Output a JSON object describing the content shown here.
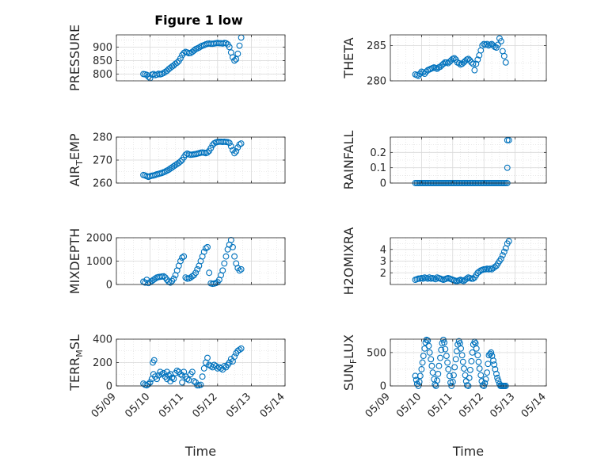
{
  "figure_title": "Figure 1 low",
  "colors": {
    "marker": "#0072bd",
    "grid": "#d9d9d9",
    "axis": "#262626"
  },
  "chart_data": [
    {
      "type": "scatter",
      "id": "pressure",
      "title": "Figure 1 low",
      "ylabel": {
        "main": "PRESSURE"
      },
      "xlabel": "",
      "xlim": [
        0,
        5
      ],
      "ylim": [
        775,
        945
      ],
      "yticks": [
        800,
        850,
        900
      ],
      "show_xticklabels": false,
      "x": [
        0.8,
        0.85,
        0.9,
        0.95,
        1.0,
        1.05,
        1.1,
        1.15,
        1.2,
        1.25,
        1.3,
        1.35,
        1.4,
        1.45,
        1.5,
        1.55,
        1.6,
        1.65,
        1.7,
        1.75,
        1.8,
        1.85,
        1.9,
        1.95,
        2.0,
        2.05,
        2.1,
        2.15,
        2.2,
        2.25,
        2.3,
        2.35,
        2.4,
        2.45,
        2.5,
        2.55,
        2.6,
        2.65,
        2.7,
        2.75,
        2.8,
        2.85,
        2.9,
        2.95,
        3.0,
        3.05,
        3.1,
        3.15,
        3.2,
        3.25,
        3.3,
        3.35,
        3.4,
        3.45,
        3.5,
        3.55,
        3.6,
        3.65,
        3.7
      ],
      "y": [
        800,
        799,
        797,
        790,
        785,
        798,
        800,
        796,
        798,
        801,
        799,
        801,
        804,
        808,
        812,
        818,
        823,
        828,
        832,
        838,
        842,
        848,
        858,
        870,
        878,
        882,
        880,
        877,
        878,
        882,
        887,
        892,
        895,
        898,
        902,
        905,
        907,
        910,
        912,
        913,
        912,
        912,
        913,
        914,
        915,
        914,
        914,
        913,
        915,
        914,
        910,
        900,
        880,
        862,
        850,
        855,
        875,
        905,
        935
      ]
    },
    {
      "type": "scatter",
      "id": "theta",
      "ylabel": {
        "main": "THETA"
      },
      "xlabel": "",
      "xlim": [
        0,
        5
      ],
      "ylim": [
        280,
        286.5
      ],
      "yticks": [
        280,
        285
      ],
      "show_xticklabels": false,
      "x": [
        0.8,
        0.85,
        0.9,
        0.95,
        1.0,
        1.05,
        1.1,
        1.15,
        1.2,
        1.25,
        1.3,
        1.35,
        1.4,
        1.45,
        1.5,
        1.55,
        1.6,
        1.65,
        1.7,
        1.75,
        1.8,
        1.85,
        1.9,
        1.95,
        2.0,
        2.05,
        2.1,
        2.15,
        2.2,
        2.25,
        2.3,
        2.35,
        2.4,
        2.45,
        2.5,
        2.55,
        2.6,
        2.65,
        2.7,
        2.75,
        2.8,
        2.85,
        2.9,
        2.95,
        3.0,
        3.05,
        3.1,
        3.15,
        3.2,
        3.25,
        3.3,
        3.35,
        3.4,
        3.45,
        3.5,
        3.55,
        3.6,
        3.65,
        3.7
      ],
      "y": [
        280.9,
        280.8,
        280.7,
        281.0,
        281.3,
        281.2,
        281.0,
        281.3,
        281.5,
        281.6,
        281.7,
        281.8,
        281.9,
        281.8,
        281.7,
        281.9,
        282.0,
        282.2,
        282.4,
        282.6,
        282.6,
        282.5,
        282.7,
        282.9,
        283.1,
        283.2,
        283.0,
        282.6,
        282.5,
        282.3,
        282.4,
        282.6,
        282.8,
        283.0,
        283.1,
        282.9,
        282.6,
        282.4,
        281.5,
        282.4,
        283.0,
        283.6,
        284.3,
        285.0,
        285.2,
        285.1,
        285.2,
        285.0,
        285.1,
        285.2,
        285.0,
        284.8,
        284.7,
        285.1,
        286.0,
        285.6,
        284.2,
        283.5,
        282.6
      ]
    },
    {
      "type": "scatter",
      "id": "air_temp",
      "ylabel": {
        "main": "AIR",
        "sub": "T",
        "rest": "EMP"
      },
      "xlabel": "",
      "xlim": [
        0,
        5
      ],
      "ylim": [
        260,
        280
      ],
      "yticks": [
        260,
        270,
        280
      ],
      "show_xticklabels": false,
      "x": [
        0.8,
        0.85,
        0.9,
        0.95,
        1.0,
        1.05,
        1.1,
        1.15,
        1.2,
        1.25,
        1.3,
        1.35,
        1.4,
        1.45,
        1.5,
        1.55,
        1.6,
        1.65,
        1.7,
        1.75,
        1.8,
        1.85,
        1.9,
        1.95,
        2.0,
        2.05,
        2.1,
        2.15,
        2.2,
        2.25,
        2.3,
        2.35,
        2.4,
        2.45,
        2.5,
        2.55,
        2.6,
        2.65,
        2.7,
        2.75,
        2.8,
        2.85,
        2.9,
        2.95,
        3.0,
        3.05,
        3.1,
        3.15,
        3.2,
        3.25,
        3.3,
        3.35,
        3.4,
        3.45,
        3.5,
        3.55,
        3.6,
        3.65,
        3.7
      ],
      "y": [
        263.5,
        263.3,
        263.0,
        262.7,
        263.0,
        263.2,
        263.3,
        263.5,
        263.8,
        264.0,
        264.2,
        264.4,
        264.7,
        265.0,
        265.4,
        265.8,
        266.3,
        266.8,
        267.3,
        267.8,
        268.3,
        268.8,
        269.4,
        270.1,
        271.2,
        272.3,
        272.8,
        272.5,
        272.3,
        272.4,
        272.5,
        272.6,
        272.8,
        273.0,
        273.2,
        273.3,
        273.2,
        273.0,
        273.3,
        274.0,
        275.2,
        276.5,
        277.3,
        277.7,
        277.9,
        278.0,
        278.0,
        277.9,
        278.0,
        277.9,
        277.8,
        277.5,
        276.0,
        274.3,
        273.0,
        273.8,
        275.5,
        276.8,
        277.2
      ]
    },
    {
      "type": "scatter",
      "id": "rainfall",
      "ylabel": {
        "main": "RAINFALL"
      },
      "xlabel": "",
      "xlim": [
        0,
        5
      ],
      "ylim": [
        0,
        0.3
      ],
      "yticks": [
        0,
        0.1,
        0.2
      ],
      "show_xticklabels": false,
      "x": [
        0.8,
        0.85,
        0.9,
        0.95,
        1.0,
        1.05,
        1.1,
        1.15,
        1.2,
        1.25,
        1.3,
        1.35,
        1.4,
        1.45,
        1.5,
        1.55,
        1.6,
        1.65,
        1.7,
        1.75,
        1.8,
        1.85,
        1.9,
        1.95,
        2.0,
        2.05,
        2.1,
        2.15,
        2.2,
        2.25,
        2.3,
        2.35,
        2.4,
        2.45,
        2.5,
        2.55,
        2.6,
        2.65,
        2.7,
        2.75,
        2.8,
        2.85,
        2.9,
        2.95,
        3.0,
        3.05,
        3.1,
        3.15,
        3.2,
        3.25,
        3.3,
        3.35,
        3.4,
        3.45,
        3.5,
        3.55,
        3.6,
        3.65,
        3.7,
        3.75,
        3.75,
        3.8,
        3.75
      ],
      "y": [
        0,
        0,
        0,
        0,
        0,
        0,
        0,
        0,
        0,
        0,
        0,
        0,
        0,
        0,
        0,
        0,
        0,
        0,
        0,
        0,
        0,
        0,
        0,
        0,
        0,
        0,
        0,
        0,
        0,
        0,
        0,
        0,
        0,
        0,
        0,
        0,
        0,
        0,
        0,
        0,
        0,
        0,
        0,
        0,
        0,
        0,
        0,
        0,
        0,
        0,
        0,
        0,
        0,
        0,
        0,
        0,
        0,
        0,
        0,
        0,
        0.1,
        0.28,
        0.28
      ]
    },
    {
      "type": "scatter",
      "id": "mixdepth",
      "ylabel": {
        "main": "MIXDEPTH"
      },
      "xlabel": "",
      "xlim": [
        0,
        5
      ],
      "ylim": [
        0,
        2000
      ],
      "yticks": [
        0,
        1000,
        2000
      ],
      "show_xticklabels": false,
      "x": [
        0.8,
        0.85,
        0.9,
        0.95,
        1.0,
        1.05,
        1.1,
        1.15,
        1.2,
        1.25,
        1.3,
        1.35,
        1.4,
        1.45,
        1.5,
        1.55,
        1.6,
        1.65,
        1.7,
        1.75,
        1.8,
        1.85,
        1.9,
        1.95,
        2.0,
        2.05,
        2.1,
        2.15,
        2.2,
        2.25,
        2.3,
        2.35,
        2.4,
        2.45,
        2.5,
        2.55,
        2.6,
        2.65,
        2.7,
        2.75,
        2.8,
        2.85,
        2.9,
        2.95,
        3.0,
        3.05,
        3.1,
        3.15,
        3.2,
        3.25,
        3.3,
        3.35,
        3.4,
        3.45,
        3.5,
        3.55,
        3.6,
        3.65,
        3.7
      ],
      "y": [
        120,
        80,
        200,
        60,
        100,
        150,
        200,
        250,
        300,
        320,
        330,
        340,
        350,
        300,
        200,
        120,
        80,
        150,
        250,
        400,
        600,
        800,
        1000,
        1150,
        1200,
        300,
        250,
        260,
        300,
        350,
        400,
        500,
        650,
        800,
        1000,
        1200,
        1400,
        1550,
        1600,
        500,
        50,
        30,
        40,
        60,
        100,
        200,
        400,
        600,
        900,
        1200,
        1500,
        1700,
        1900,
        1600,
        1200,
        900,
        700,
        600,
        650
      ]
    },
    {
      "type": "scatter",
      "id": "h2omixra",
      "ylabel": {
        "main": "H2OMIXRA"
      },
      "xlabel": "",
      "xlim": [
        0,
        5
      ],
      "ylim": [
        1,
        5
      ],
      "yticks": [
        2,
        3,
        4
      ],
      "show_xticklabels": false,
      "x": [
        0.8,
        0.85,
        0.9,
        0.95,
        1.0,
        1.05,
        1.1,
        1.15,
        1.2,
        1.25,
        1.3,
        1.35,
        1.4,
        1.45,
        1.5,
        1.55,
        1.6,
        1.65,
        1.7,
        1.75,
        1.8,
        1.85,
        1.9,
        1.95,
        2.0,
        2.05,
        2.1,
        2.15,
        2.2,
        2.25,
        2.3,
        2.35,
        2.4,
        2.45,
        2.5,
        2.55,
        2.6,
        2.65,
        2.7,
        2.75,
        2.8,
        2.85,
        2.9,
        2.95,
        3.0,
        3.05,
        3.1,
        3.15,
        3.2,
        3.25,
        3.3,
        3.35,
        3.4,
        3.45,
        3.5,
        3.55,
        3.6,
        3.65,
        3.7,
        3.75,
        3.8
      ],
      "y": [
        1.4,
        1.45,
        1.5,
        1.5,
        1.55,
        1.5,
        1.6,
        1.55,
        1.5,
        1.6,
        1.5,
        1.55,
        1.5,
        1.45,
        1.6,
        1.55,
        1.5,
        1.45,
        1.4,
        1.45,
        1.5,
        1.55,
        1.5,
        1.45,
        1.4,
        1.35,
        1.3,
        1.3,
        1.35,
        1.4,
        1.35,
        1.3,
        1.4,
        1.5,
        1.6,
        1.55,
        1.5,
        1.5,
        1.6,
        1.8,
        2.0,
        2.1,
        2.2,
        2.25,
        2.3,
        2.3,
        2.35,
        2.3,
        2.35,
        2.3,
        2.4,
        2.5,
        2.6,
        2.8,
        3.0,
        3.2,
        3.5,
        3.8,
        4.1,
        4.5,
        4.7
      ]
    },
    {
      "type": "scatter",
      "id": "terr_msl",
      "ylabel": {
        "main": "TERR",
        "sub": "M",
        "rest": "SL"
      },
      "xlabel": "Time",
      "xlim": [
        0,
        5
      ],
      "ylim": [
        0,
        400
      ],
      "yticks": [
        0,
        200,
        400
      ],
      "xticks": [
        0,
        1,
        2,
        3,
        4,
        5
      ],
      "xticklabels": [
        "05/09",
        "05/10",
        "05/11",
        "05/12",
        "05/13",
        "05/14"
      ],
      "show_xticklabels": true,
      "x": [
        0.8,
        0.85,
        0.9,
        0.95,
        1.0,
        1.05,
        1.1,
        1.15,
        1.2,
        1.25,
        1.3,
        1.35,
        1.4,
        1.45,
        1.5,
        1.55,
        1.6,
        1.65,
        1.7,
        1.75,
        1.8,
        1.85,
        1.9,
        1.95,
        2.0,
        2.05,
        2.1,
        2.15,
        2.2,
        2.25,
        2.3,
        2.35,
        2.4,
        2.45,
        2.5,
        2.55,
        2.6,
        2.65,
        2.7,
        2.75,
        2.8,
        2.85,
        2.9,
        2.95,
        3.0,
        3.05,
        3.1,
        3.15,
        3.2,
        3.25,
        3.3,
        3.35,
        3.4,
        3.45,
        3.5,
        3.55,
        3.6,
        3.65,
        3.7,
        1.08,
        1.12,
        1.5,
        1.6,
        1.95
      ],
      "y": [
        20,
        10,
        5,
        15,
        30,
        60,
        100,
        80,
        60,
        90,
        120,
        100,
        110,
        80,
        120,
        90,
        100,
        70,
        60,
        110,
        130,
        120,
        100,
        90,
        120,
        80,
        60,
        50,
        100,
        120,
        40,
        30,
        5,
        5,
        10,
        80,
        150,
        200,
        240,
        180,
        170,
        160,
        180,
        170,
        150,
        160,
        150,
        140,
        170,
        160,
        180,
        200,
        230,
        210,
        250,
        280,
        300,
        310,
        320,
        200,
        220,
        60,
        40,
        30
      ]
    },
    {
      "type": "scatter",
      "id": "sun_flux",
      "ylabel": {
        "main": "SUN",
        "sub": "F",
        "rest": "LUX"
      },
      "xlabel": "Time",
      "xlim": [
        0,
        5
      ],
      "ylim": [
        0,
        700
      ],
      "yticks": [
        0,
        500
      ],
      "xticks": [
        0,
        1,
        2,
        3,
        4,
        5
      ],
      "xticklabels": [
        "05/09",
        "05/10",
        "05/11",
        "05/12",
        "05/13",
        "05/14"
      ],
      "show_xticklabels": true,
      "x": [
        0.8,
        0.83,
        0.86,
        0.9,
        0.93,
        0.96,
        1.0,
        1.03,
        1.06,
        1.1,
        1.13,
        1.16,
        1.2,
        1.23,
        1.26,
        1.3,
        1.33,
        1.36,
        1.4,
        1.43,
        1.46,
        1.5,
        1.53,
        1.56,
        1.6,
        1.63,
        1.66,
        1.7,
        1.73,
        1.76,
        1.8,
        1.83,
        1.86,
        1.9,
        1.93,
        1.96,
        2.0,
        2.03,
        2.06,
        2.1,
        2.13,
        2.16,
        2.2,
        2.23,
        2.26,
        2.3,
        2.33,
        2.36,
        2.4,
        2.43,
        2.46,
        2.5,
        2.53,
        2.56,
        2.6,
        2.63,
        2.66,
        2.7,
        2.73,
        2.76,
        2.8,
        2.83,
        2.86,
        2.9,
        2.93,
        2.96,
        3.0,
        3.03,
        3.06,
        3.1,
        3.13,
        3.16,
        3.2,
        3.23,
        3.26,
        3.3,
        3.33,
        3.36,
        3.4,
        3.43,
        3.46,
        3.5,
        3.53,
        3.56,
        3.6,
        3.63,
        3.66,
        3.7
      ],
      "y": [
        150,
        90,
        30,
        0,
        60,
        150,
        250,
        350,
        450,
        560,
        650,
        690,
        680,
        600,
        500,
        400,
        300,
        200,
        100,
        20,
        0,
        80,
        180,
        300,
        420,
        540,
        640,
        690,
        650,
        550,
        450,
        350,
        250,
        150,
        50,
        0,
        60,
        160,
        280,
        400,
        520,
        620,
        670,
        640,
        560,
        460,
        360,
        260,
        160,
        70,
        10,
        0,
        120,
        240,
        370,
        500,
        620,
        660,
        640,
        560,
        460,
        360,
        260,
        160,
        70,
        10,
        0,
        40,
        100,
        200,
        330,
        460,
        480,
        500,
        450,
        380,
        320,
        250,
        180,
        120,
        80,
        30,
        0,
        0,
        0,
        0,
        0,
        0
      ]
    }
  ]
}
